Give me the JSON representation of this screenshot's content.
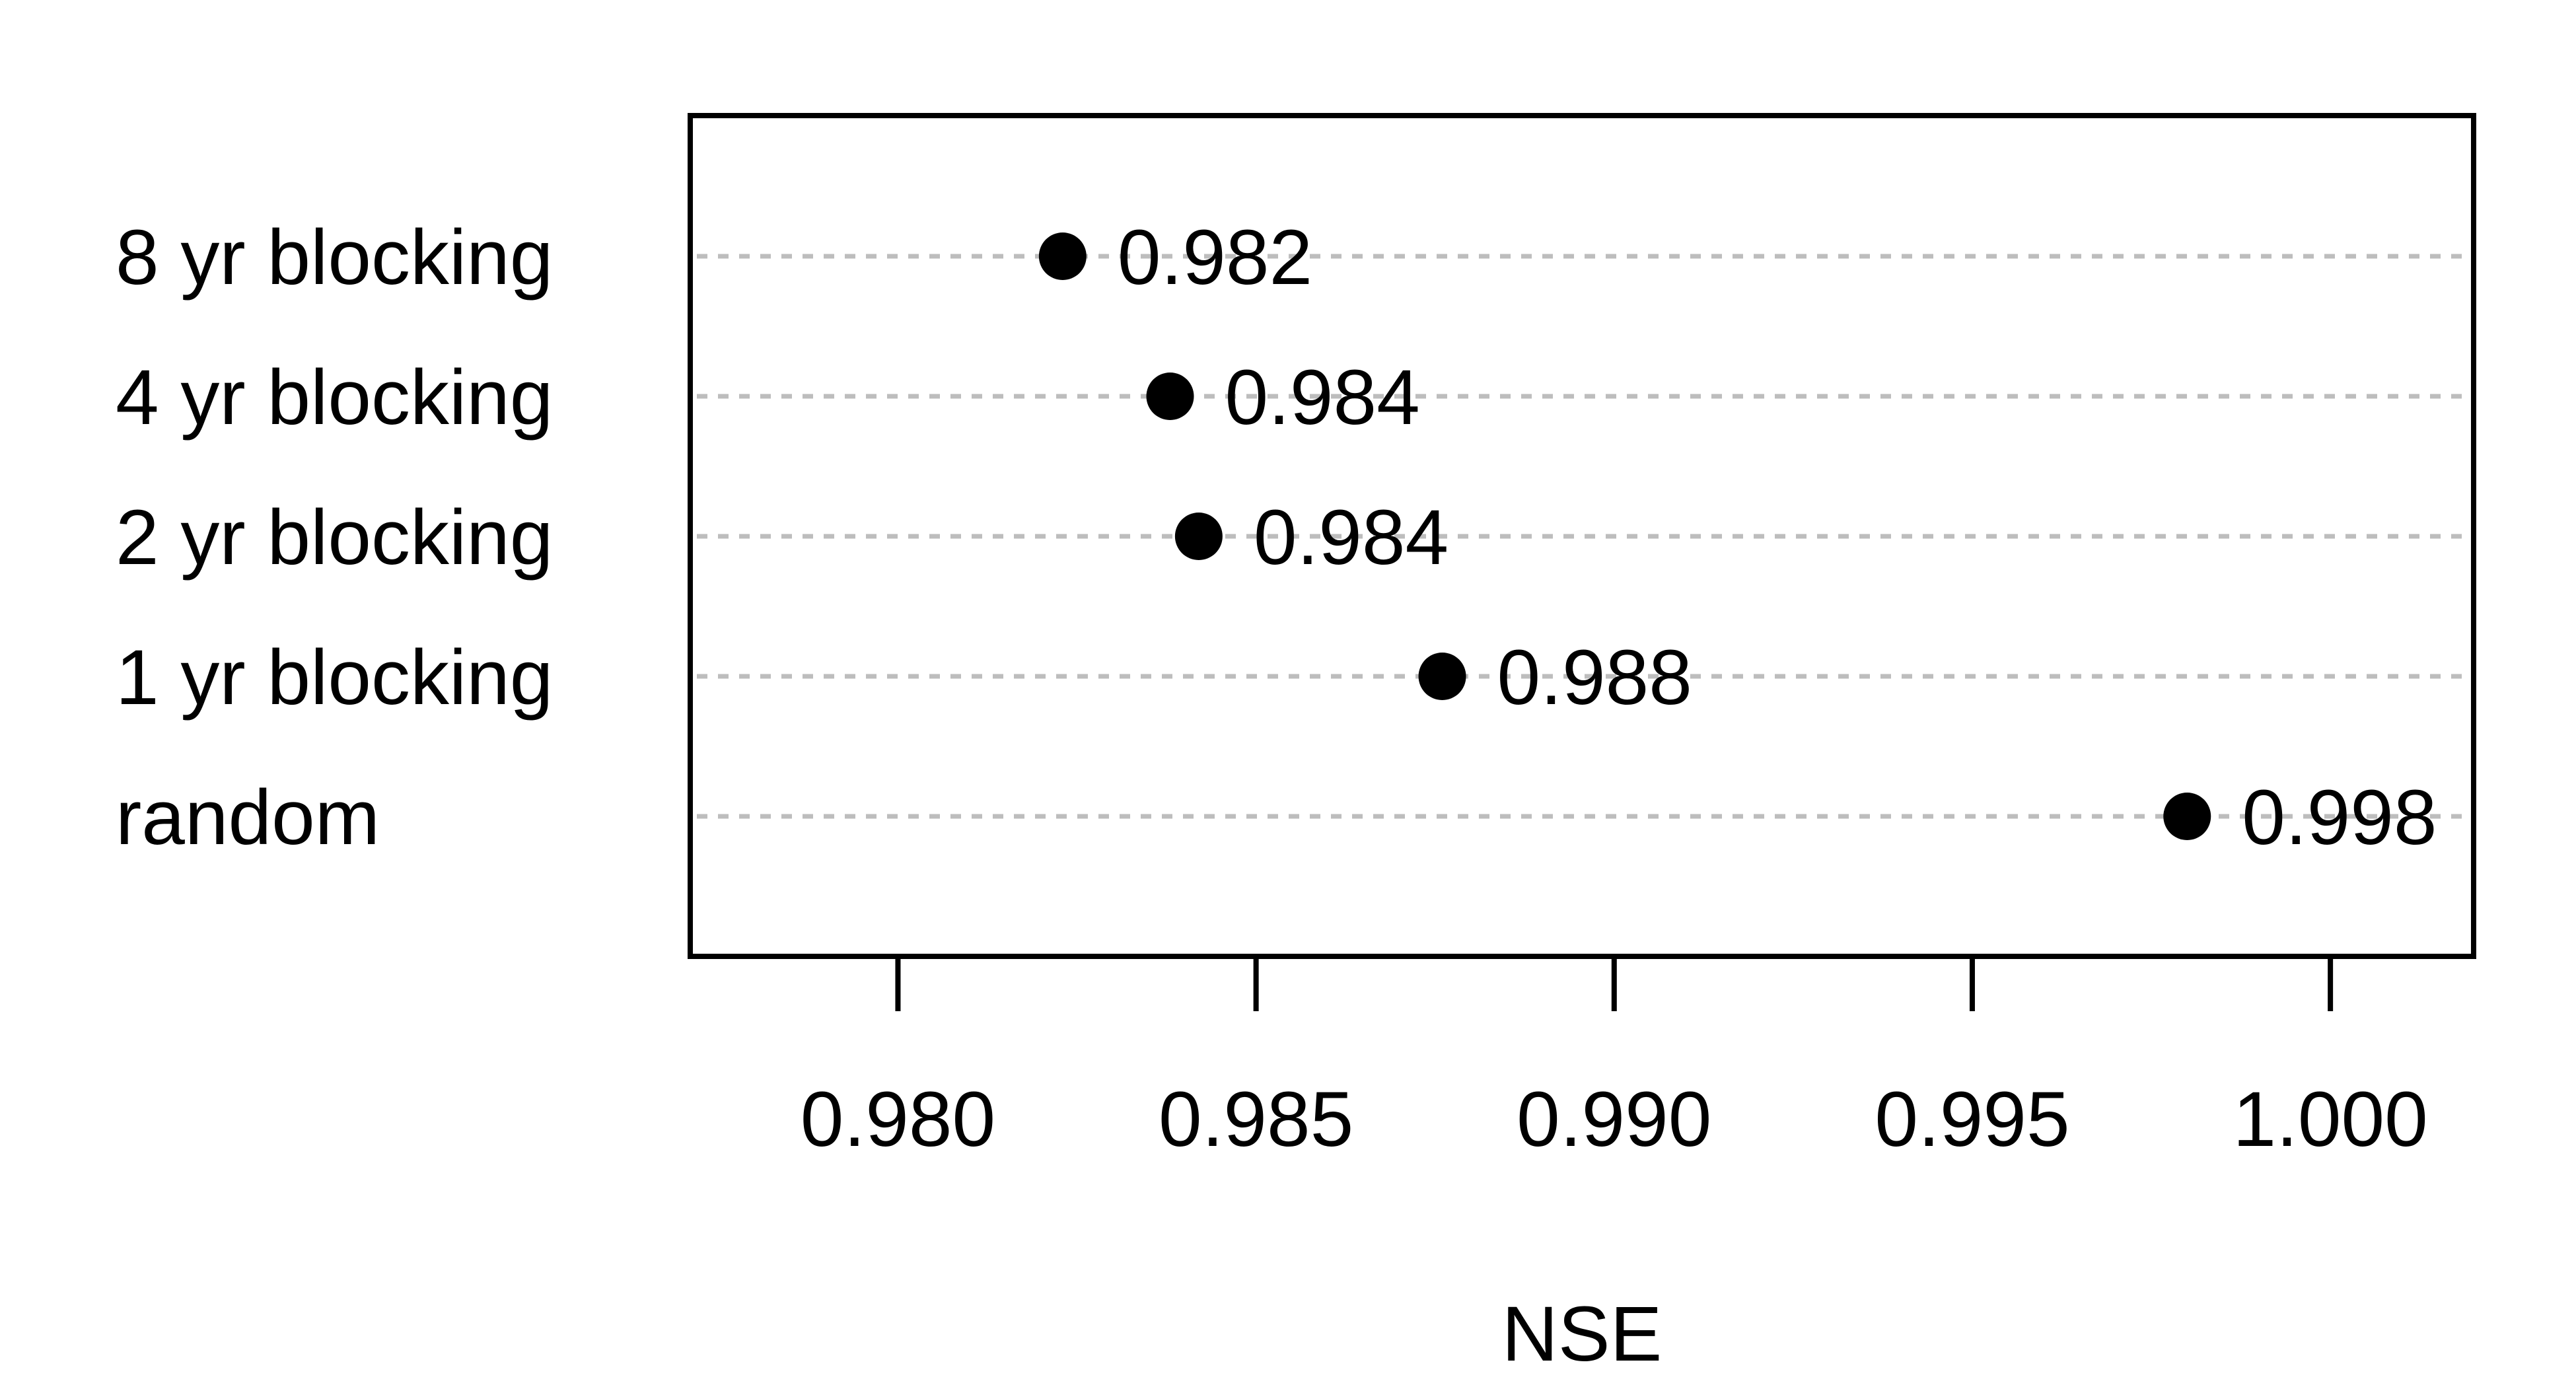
{
  "chart_data": {
    "type": "scatter",
    "xlabel": "NSE",
    "xlim": [
      0.9771,
      1.002
    ],
    "xticks": [
      0.98,
      0.985,
      0.99,
      0.995,
      1.0
    ],
    "xtick_labels": [
      "0.980",
      "0.985",
      "0.990",
      "0.995",
      "1.000"
    ],
    "grid": "dashed horizontal guide lines at each category",
    "categories": [
      "8 yr blocking",
      "4 yr blocking",
      "2 yr blocking",
      "1 yr blocking",
      "random"
    ],
    "values": [
      0.9823,
      0.9838,
      0.9842,
      0.9876,
      0.998
    ],
    "value_labels": [
      "0.982",
      "0.984",
      "0.984",
      "0.988",
      "0.998"
    ]
  }
}
